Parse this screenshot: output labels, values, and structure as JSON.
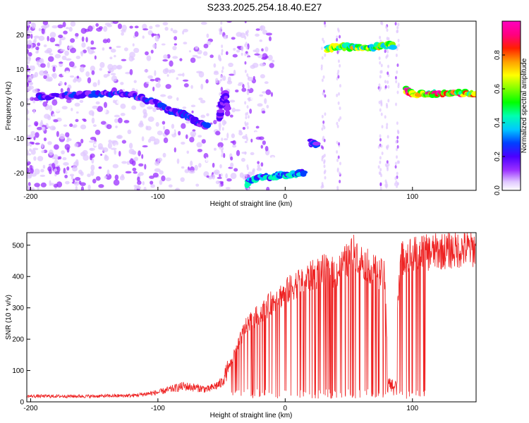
{
  "title": "S233.2025.254.18.40.E27",
  "chart_data": [
    {
      "type": "heatmap",
      "xlabel": "Height of straight line (km)",
      "ylabel": "Frequency (Hz)",
      "xlim": [
        -203,
        150
      ],
      "ylim": [
        -25,
        24
      ],
      "xticks": [
        -200,
        -100,
        0,
        100
      ],
      "yticks": [
        -20,
        -10,
        0,
        10,
        20
      ],
      "colorbar": {
        "label": "Normalized spectral amplitude",
        "range": [
          0,
          1
        ],
        "ticks": [
          "0.0",
          "0.2",
          "0.4",
          "0.6",
          "0.8"
        ]
      },
      "ridges": [
        {
          "x": [
            -195,
            -170,
            -150,
            -130,
            -115,
            -100,
            -90,
            -80,
            -70,
            -60
          ],
          "freq": [
            2,
            2.5,
            3,
            3.5,
            2,
            0,
            -2,
            -3,
            -5,
            -7
          ],
          "amplitude": 0.3
        },
        {
          "x": [
            -52,
            -50,
            -47,
            -45
          ],
          "freq": [
            -5,
            0,
            3,
            -3
          ],
          "amplitude": 0.25
        },
        {
          "x": [
            -30,
            -20,
            -10,
            0,
            10,
            15
          ],
          "freq": [
            -23,
            -21,
            -21,
            -20.5,
            -20,
            -20
          ],
          "amplitude": 0.45
        },
        {
          "x": [
            20,
            25
          ],
          "freq": [
            -11,
            -12
          ],
          "amplitude": 0.3
        },
        {
          "x": [
            33,
            40,
            50,
            60,
            70,
            80,
            85
          ],
          "freq": [
            16,
            16.5,
            16.5,
            16.5,
            16.5,
            17,
            17
          ],
          "amplitude": 0.7
        },
        {
          "x": [
            95,
            100,
            110,
            120,
            130,
            140,
            150
          ],
          "freq": [
            4,
            3,
            3,
            3,
            3,
            3,
            3
          ],
          "amplitude": 0.95
        }
      ]
    },
    {
      "type": "line",
      "xlabel": "Height of straight line (km)",
      "ylabel": "SNR (10 * v/v)",
      "xlim": [
        -203,
        150
      ],
      "ylim": [
        0,
        540
      ],
      "xticks": [
        -200,
        -100,
        0,
        100
      ],
      "yticks": [
        0,
        100,
        200,
        300,
        400,
        500
      ],
      "color": "#ee2222",
      "envelope": {
        "x": [
          -203,
          -150,
          -120,
          -100,
          -90,
          -80,
          -60,
          -50,
          -40,
          -35,
          -30,
          -20,
          -10,
          0,
          10,
          20,
          30,
          40,
          50,
          55,
          60,
          70,
          78,
          80,
          85,
          90,
          95,
          100,
          120,
          150
        ],
        "y": [
          18,
          18,
          20,
          30,
          40,
          50,
          40,
          60,
          150,
          200,
          250,
          280,
          320,
          350,
          380,
          400,
          420,
          410,
          460,
          480,
          450,
          420,
          400,
          200,
          50,
          450,
          470,
          470,
          480,
          490
        ]
      }
    }
  ]
}
